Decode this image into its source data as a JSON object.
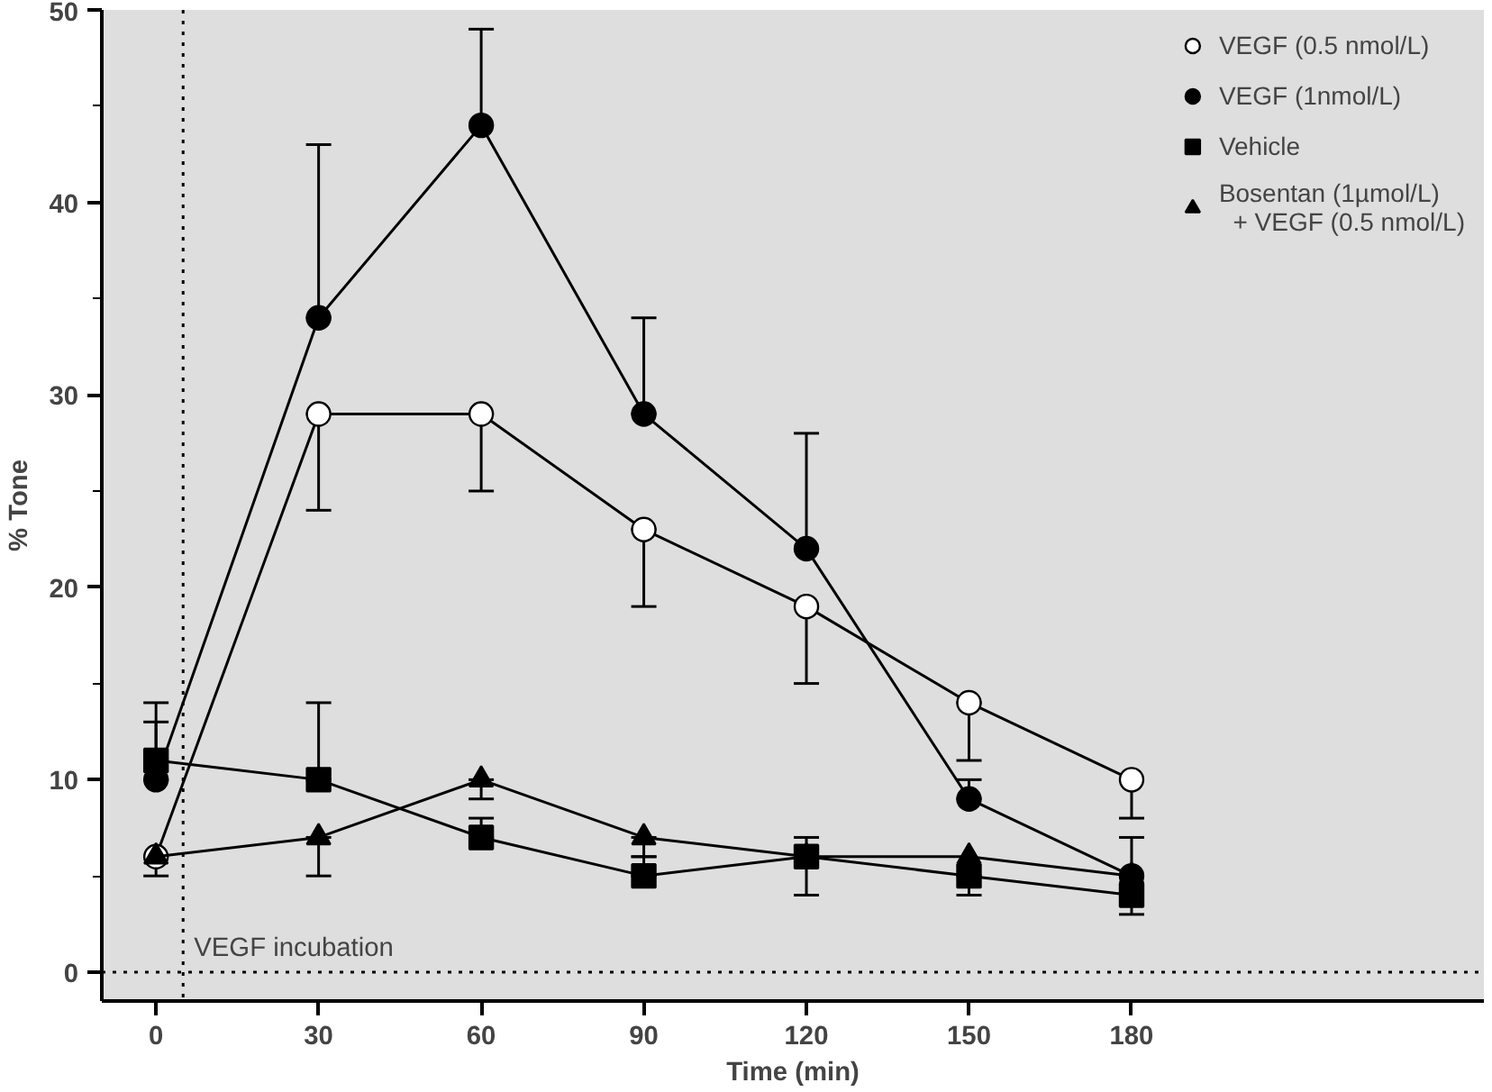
{
  "chart_data": {
    "type": "line",
    "xlabel": "Time (min)",
    "ylabel": "% Tone",
    "x": [
      0,
      30,
      60,
      90,
      120,
      150,
      180
    ],
    "xlim": [
      -10,
      245
    ],
    "xticks": [
      0,
      30,
      60,
      90,
      120,
      150,
      180
    ],
    "ylim": [
      -1.5,
      50
    ],
    "yticks": [
      0,
      10,
      20,
      30,
      40,
      50
    ],
    "grid": false,
    "legend": "top right",
    "line_style": "solid",
    "series": [
      {
        "name": "VEGF (0.5 nmol/L)",
        "color": "#ffffff",
        "marker": "circle",
        "values": [
          6,
          29,
          29,
          23,
          19,
          14,
          10
        ],
        "errors": [
          [
            5,
            6
          ],
          [
            24,
            29
          ],
          [
            25,
            29
          ],
          [
            19,
            23
          ],
          [
            15,
            19
          ],
          [
            11,
            14
          ],
          [
            8,
            10
          ]
        ]
      },
      {
        "name": "VEGF (1nmol/L)",
        "color": "#000000",
        "marker": "circle",
        "values": [
          10,
          34,
          44,
          29,
          22,
          9,
          5
        ],
        "errors": [
          [
            10,
            14
          ],
          [
            34,
            43
          ],
          [
            44,
            49
          ],
          [
            29,
            34
          ],
          [
            22,
            28
          ],
          [
            9,
            10
          ],
          [
            5,
            7
          ]
        ]
      },
      {
        "name": "Vehicle",
        "color": "#000000",
        "marker": "square",
        "values": [
          11,
          10,
          7,
          5,
          6,
          5,
          4
        ],
        "errors": [
          [
            11,
            13
          ],
          [
            10,
            14
          ],
          [
            7,
            8
          ],
          [
            5,
            6
          ],
          [
            4,
            7
          ],
          [
            4,
            5
          ],
          [
            3,
            4
          ]
        ]
      },
      {
        "name": "Bosentan (1µmol/L)\n  + VEGF (0.5 nmol/L)",
        "color": "#000000",
        "marker": "triangle",
        "values": [
          6,
          7,
          10,
          7,
          6,
          6,
          5
        ],
        "errors": [
          null,
          [
            5,
            7
          ],
          [
            9,
            10
          ],
          [
            6,
            7
          ],
          null,
          null,
          null
        ]
      }
    ],
    "ref_lines": [
      {
        "axis": "x",
        "value": 5,
        "label": "VEGF incubation",
        "line_style": "dotted"
      },
      {
        "axis": "y",
        "value": 0,
        "line_style": "dotted"
      }
    ]
  }
}
